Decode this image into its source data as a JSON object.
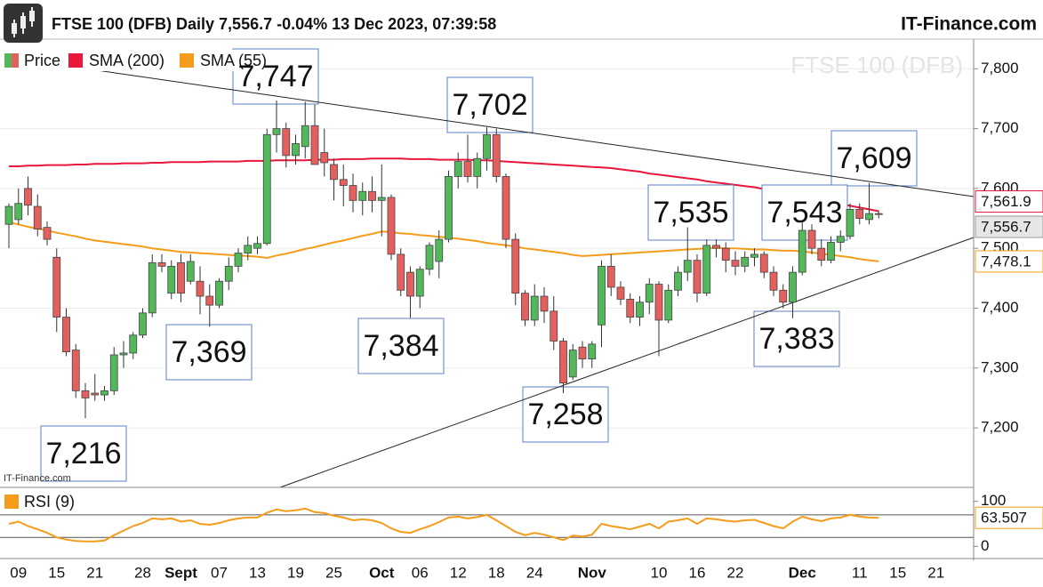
{
  "header": {
    "title": "FTSE 100 (DFB) Daily 7,556.7 -0.04% 13 Dec 2023, 07:39:58",
    "brand": "IT-Finance.com"
  },
  "chart_data": [
    {
      "type": "candlestick",
      "watermark": "FTSE 100 (DFB)",
      "source": "IT-Finance.com",
      "categories": [
        null,
        "09",
        null,
        null,
        null,
        "15",
        null,
        null,
        null,
        "21",
        null,
        null,
        null,
        null,
        "28",
        null,
        null,
        null,
        "Sept",
        null,
        null,
        null,
        "07",
        null,
        null,
        null,
        "13",
        null,
        null,
        null,
        "19",
        null,
        null,
        null,
        "25",
        null,
        null,
        null,
        null,
        "Oct",
        null,
        null,
        null,
        "06",
        null,
        null,
        null,
        "12",
        null,
        null,
        null,
        "18",
        null,
        null,
        null,
        "24",
        null,
        null,
        null,
        null,
        null,
        "Nov",
        null,
        null,
        null,
        null,
        null,
        null,
        "10",
        null,
        null,
        null,
        "16",
        null,
        null,
        null,
        "22",
        null,
        null,
        null,
        null,
        null,
        null,
        "Dec",
        null,
        null,
        null,
        null,
        null,
        "11",
        null,
        null,
        null,
        "15",
        null,
        null,
        null,
        "21"
      ],
      "ylim": [
        7105,
        7848
      ],
      "yticks": [
        {
          "value": 7200,
          "label": "7,200"
        },
        {
          "value": 7300,
          "label": "7,300"
        },
        {
          "value": 7400,
          "label": "7,400"
        },
        {
          "value": 7500,
          "label": "7,500"
        },
        {
          "value": 7600,
          "label": "7,600"
        },
        {
          "value": 7700,
          "label": "7,700"
        },
        {
          "value": 7800,
          "label": "7,800"
        }
      ],
      "grid": true,
      "up_color": "#52b85a",
      "down_color": "#e3605f",
      "series": [
        {
          "name": "Price",
          "last_label": "7,556.7",
          "open": [
            7540,
            7548,
            7600,
            7570,
            7535,
            7485,
            7385,
            7330,
            7262,
            7258,
            7255,
            7262,
            7322,
            7325,
            7355,
            7392,
            7476,
            7425,
            7476,
            7445,
            7445,
            7420,
            7405,
            7445,
            7470,
            7492,
            7500,
            7508,
            7690,
            7700,
            7655,
            7670,
            7705,
            7660,
            7640,
            7615,
            7605,
            7580,
            7595,
            7580,
            7585,
            7490,
            7460,
            7420,
            7465,
            7478,
            7515,
            7620,
            7645,
            7620,
            7650,
            7690,
            7620,
            7515,
            7425,
            7380,
            7420,
            7395,
            7345,
            7285,
            7335,
            7315,
            7372,
            7470,
            7435,
            7415,
            7385,
            7410,
            7440,
            7380,
            7430,
            7460,
            7480,
            7425,
            7505,
            7500,
            7480,
            7470,
            7485,
            7490,
            7460,
            7430,
            7410,
            7460,
            7530,
            7500,
            7480,
            7510,
            7520,
            7565,
            7548,
            7558,
            null,
            null,
            null,
            null,
            null,
            null
          ],
          "high": [
            7575,
            7600,
            7620,
            7590,
            7545,
            7500,
            7400,
            7340,
            7275,
            7290,
            7270,
            7335,
            7345,
            7360,
            7400,
            7490,
            7490,
            7480,
            7490,
            7490,
            7470,
            7440,
            7450,
            7485,
            7500,
            7520,
            7520,
            7700,
            7747,
            7710,
            7690,
            7745,
            7740,
            7700,
            7650,
            7640,
            7625,
            7610,
            7620,
            7640,
            7590,
            7500,
            7470,
            7470,
            7510,
            7530,
            7630,
            7660,
            7690,
            7660,
            7702,
            7700,
            7625,
            7525,
            7430,
            7440,
            7435,
            7420,
            7350,
            7340,
            7345,
            7345,
            7480,
            7490,
            7445,
            7425,
            7420,
            7450,
            7445,
            7440,
            7470,
            7535,
            7490,
            7515,
            7515,
            7510,
            7495,
            7495,
            7500,
            7495,
            7470,
            7440,
            7470,
            7543,
            7540,
            7515,
            7520,
            7530,
            7575,
            7575,
            7609,
            7562,
            null,
            null,
            null,
            null,
            null,
            null
          ],
          "low": [
            7500,
            7540,
            7555,
            7520,
            7505,
            7360,
            7320,
            7250,
            7216,
            7245,
            7245,
            7255,
            7300,
            7315,
            7350,
            7385,
            7460,
            7415,
            7410,
            7440,
            7390,
            7369,
            7400,
            7430,
            7460,
            7480,
            7490,
            7505,
            7660,
            7635,
            7640,
            7650,
            7640,
            7620,
            7580,
            7570,
            7560,
            7555,
            7560,
            7520,
            7480,
            7420,
            7384,
            7400,
            7455,
            7450,
            7510,
            7600,
            7610,
            7600,
            7630,
            7610,
            7500,
            7405,
            7370,
            7370,
            7375,
            7330,
            7258,
            7280,
            7300,
            7300,
            7335,
            7420,
            7405,
            7375,
            7370,
            7390,
            7320,
            7375,
            7420,
            7445,
            7410,
            7420,
            7485,
            7460,
            7455,
            7460,
            7470,
            7450,
            7420,
            7400,
            7383,
            7455,
            7490,
            7470,
            7475,
            7495,
            7515,
            7540,
            7540,
            7550,
            null,
            null,
            null,
            null,
            null,
            null
          ],
          "close": [
            7570,
            7575,
            7572,
            7532,
            7515,
            7385,
            7327,
            7262,
            7250,
            7255,
            7262,
            7322,
            7325,
            7355,
            7392,
            7476,
            7470,
            7470,
            7425,
            7478,
            7420,
            7405,
            7445,
            7470,
            7492,
            7505,
            7508,
            7690,
            7700,
            7655,
            7675,
            7705,
            7640,
            7643,
            7615,
            7605,
            7580,
            7595,
            7580,
            7585,
            7490,
            7430,
            7420,
            7465,
            7505,
            7515,
            7620,
            7645,
            7620,
            7650,
            7690,
            7620,
            7515,
            7425,
            7380,
            7420,
            7395,
            7345,
            7275,
            7330,
            7315,
            7340,
            7470,
            7435,
            7415,
            7385,
            7410,
            7440,
            7380,
            7430,
            7460,
            7480,
            7425,
            7505,
            7500,
            7480,
            7470,
            7485,
            7490,
            7460,
            7430,
            7410,
            7460,
            7530,
            7500,
            7480,
            7510,
            7520,
            7565,
            7550,
            7558,
            7556.7,
            null,
            null,
            null,
            null,
            null,
            null
          ]
        }
      ],
      "lines": [
        {
          "name": "SMA (200)",
          "color": "#e8173c",
          "last_label": "7,561.9",
          "values": [
            7637,
            7637,
            7638,
            7638,
            7639,
            7639,
            7639,
            7640,
            7640,
            7641,
            7641,
            7641,
            7642,
            7642,
            7642,
            7643,
            7643,
            7644,
            7644,
            7644,
            7644,
            7645,
            7645,
            7645,
            7645,
            7646,
            7646,
            7646,
            7647,
            7647,
            7647,
            7647,
            7648,
            7648,
            7648,
            7649,
            7649,
            7649,
            7650,
            7650,
            7650,
            7650,
            7649,
            7649,
            7649,
            7648,
            7648,
            7648,
            7648,
            7647,
            7647,
            7646,
            7645,
            7644,
            7643,
            7642,
            7641,
            7640,
            7639,
            7638,
            7637,
            7636,
            7635,
            7634,
            7632,
            7630,
            7628,
            7625,
            7623,
            7621,
            7619,
            7617,
            7615,
            7612,
            7610,
            7608,
            7606,
            7604,
            7602,
            7599,
            7596,
            7593,
            7590,
            7586,
            7583,
            7580,
            7577,
            7574,
            7571,
            7568,
            7565,
            7561.9,
            null,
            null,
            null,
            null,
            null,
            null
          ]
        },
        {
          "name": "SMA (55)",
          "color": "#f59c1a",
          "last_label": "7,478.1",
          "values": [
            7543,
            7540,
            7536,
            7533,
            7530,
            7526,
            7523,
            7520,
            7516,
            7513,
            7511,
            7509,
            7507,
            7505,
            7503,
            7500,
            7498,
            7496,
            7494,
            7493,
            7492,
            7491,
            7490,
            7489,
            7488,
            7487,
            7486,
            7484,
            7488,
            7491,
            7495,
            7499,
            7502,
            7506,
            7510,
            7513,
            7517,
            7521,
            7524,
            7528,
            7527,
            7525,
            7524,
            7522,
            7521,
            7519,
            7518,
            7516,
            7514,
            7512,
            7509,
            7507,
            7505,
            7503,
            7500,
            7498,
            7496,
            7494,
            7492,
            7489,
            7487,
            7488,
            7489,
            7490,
            7491,
            7492,
            7493,
            7494,
            7495,
            7496,
            7497,
            7498,
            7499,
            7500,
            7501,
            7500,
            7500,
            7499,
            7498,
            7498,
            7497,
            7496,
            7496,
            7495,
            7493,
            7491,
            7489,
            7487,
            7485,
            7482,
            7480,
            7478.1,
            null,
            null,
            null,
            null,
            null,
            null
          ]
        }
      ],
      "annotations": [
        {
          "label": "7,747"
        },
        {
          "label": "7,702"
        },
        {
          "label": "7,609"
        },
        {
          "label": "7,535"
        },
        {
          "label": "7,543"
        },
        {
          "label": "7,369"
        },
        {
          "label": "7,384"
        },
        {
          "label": "7,383"
        },
        {
          "label": "7,258"
        },
        {
          "label": "7,216"
        }
      ]
    },
    {
      "type": "line",
      "ylim": [
        -25,
        129
      ],
      "yticks": [
        0,
        100
      ],
      "levels": [
        70,
        20
      ],
      "series": [
        {
          "name": "RSI (9)",
          "color": "#f59c1a",
          "last_label": "63.507",
          "values": [
            50,
            55,
            45,
            38,
            30,
            20,
            15,
            12,
            11,
            11,
            13,
            25,
            35,
            45,
            52,
            62,
            60,
            62,
            55,
            58,
            50,
            48,
            52,
            58,
            62,
            64,
            64,
            75,
            82,
            78,
            80,
            84,
            76,
            74,
            68,
            64,
            58,
            60,
            58,
            52,
            40,
            32,
            30,
            38,
            45,
            54,
            64,
            66,
            62,
            65,
            70,
            58,
            45,
            32,
            25,
            30,
            26,
            20,
            14,
            24,
            22,
            26,
            50,
            45,
            42,
            38,
            44,
            50,
            40,
            55,
            58,
            62,
            50,
            62,
            60,
            57,
            55,
            58,
            59,
            52,
            45,
            40,
            55,
            66,
            60,
            56,
            62,
            64,
            70,
            66,
            64,
            63.507,
            null,
            null,
            null,
            null,
            null,
            null
          ]
        }
      ]
    }
  ]
}
